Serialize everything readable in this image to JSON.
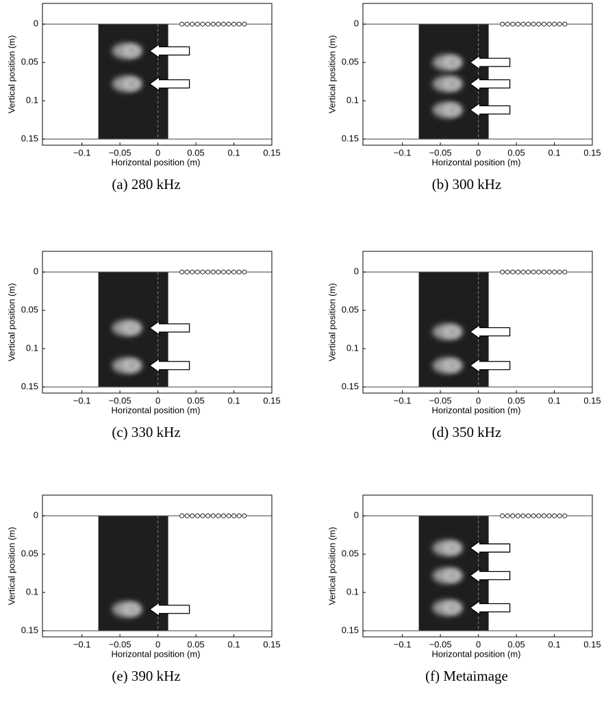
{
  "panels": [
    {
      "caption": "(a) 280 kHz",
      "x_label": "Horizontal position (m)",
      "y_label": "Vertical position (m)",
      "xlim": [
        -0.152,
        0.15
      ],
      "ylim": [
        -0.027,
        0.158
      ],
      "y_reversed": true,
      "xticks": [
        {
          "value": -0.1,
          "label": "−0.1"
        },
        {
          "value": -0.05,
          "label": "−0.05"
        },
        0,
        0.05,
        0.1,
        0.15
      ],
      "yticks": [
        0,
        0.05,
        0.1,
        0.15
      ],
      "arrows_y": [
        0.035,
        0.078
      ]
    },
    {
      "caption": "(b) 300 kHz",
      "x_label": "Horizontal position (m)",
      "y_label": "Vertical position (m)",
      "xlim": [
        -0.152,
        0.15
      ],
      "ylim": [
        -0.027,
        0.158
      ],
      "y_reversed": true,
      "xticks": [
        {
          "value": -0.1,
          "label": "−0.1"
        },
        {
          "value": -0.05,
          "label": "−0.05"
        },
        0,
        0.05,
        0.1,
        0.15
      ],
      "yticks": [
        0,
        0.05,
        0.1,
        0.15
      ],
      "arrows_y": [
        0.05,
        0.078,
        0.112
      ]
    },
    {
      "caption": "(c) 330 kHz",
      "x_label": "Horizontal position (m)",
      "y_label": "Vertical position (m)",
      "xlim": [
        -0.152,
        0.15
      ],
      "ylim": [
        -0.027,
        0.158
      ],
      "y_reversed": true,
      "xticks": [
        {
          "value": -0.1,
          "label": "−0.1"
        },
        {
          "value": -0.05,
          "label": "−0.05"
        },
        0,
        0.05,
        0.1,
        0.15
      ],
      "yticks": [
        0,
        0.05,
        0.1,
        0.15
      ],
      "arrows_y": [
        0.073,
        0.122
      ]
    },
    {
      "caption": "(d) 350 kHz",
      "x_label": "Horizontal position (m)",
      "y_label": "Vertical position (m)",
      "xlim": [
        -0.152,
        0.15
      ],
      "ylim": [
        -0.027,
        0.158
      ],
      "y_reversed": true,
      "xticks": [
        {
          "value": -0.1,
          "label": "−0.1"
        },
        {
          "value": -0.05,
          "label": "−0.05"
        },
        0,
        0.05,
        0.1,
        0.15
      ],
      "yticks": [
        0,
        0.05,
        0.1,
        0.15
      ],
      "arrows_y": [
        0.078,
        0.122
      ]
    },
    {
      "caption": "(e) 390 kHz",
      "x_label": "Horizontal position (m)",
      "y_label": "Vertical position (m)",
      "xlim": [
        -0.152,
        0.15
      ],
      "ylim": [
        -0.027,
        0.158
      ],
      "y_reversed": true,
      "xticks": [
        {
          "value": -0.1,
          "label": "−0.1"
        },
        {
          "value": -0.05,
          "label": "−0.05"
        },
        0,
        0.05,
        0.1,
        0.15
      ],
      "yticks": [
        0,
        0.05,
        0.1,
        0.15
      ],
      "arrows_y": [
        0.122
      ]
    },
    {
      "caption": "(f) Metaimage",
      "x_label": "Horizontal position (m)",
      "y_label": "Vertical position (m)",
      "xlim": [
        -0.152,
        0.15
      ],
      "ylim": [
        -0.027,
        0.158
      ],
      "y_reversed": true,
      "xticks": [
        {
          "value": -0.1,
          "label": "−0.1"
        },
        {
          "value": -0.05,
          "label": "−0.05"
        },
        0,
        0.05,
        0.1,
        0.15
      ],
      "yticks": [
        0,
        0.05,
        0.1,
        0.15
      ],
      "arrows_y": [
        0.042,
        0.078,
        0.12
      ]
    }
  ]
}
